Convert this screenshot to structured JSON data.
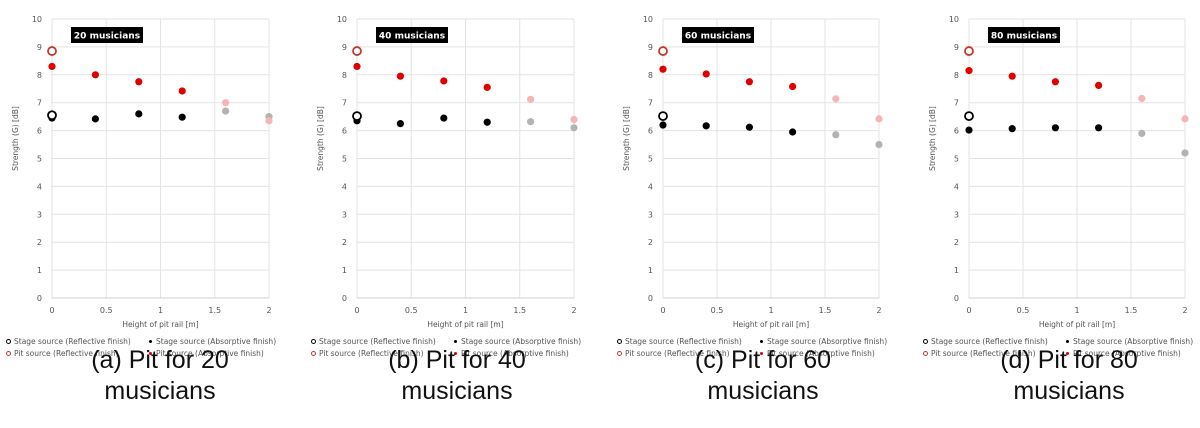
{
  "chart_data": [
    {
      "type": "scatter",
      "panel_id": "a",
      "title": "20 musicians",
      "caption": "(a) Pit for 20 musicians",
      "xlabel": "Height of pit rail [m]",
      "ylabel": "Strength (G) [dB]",
      "xlim": [
        0,
        2
      ],
      "ylim": [
        0,
        10
      ],
      "xticks": [
        "0",
        "0.5",
        "1",
        "1.5",
        "2"
      ],
      "yticks": [
        "0",
        "1",
        "2",
        "3",
        "4",
        "5",
        "6",
        "7",
        "8",
        "9",
        "10"
      ],
      "grid": true,
      "legend_position": "bottom",
      "series": [
        {
          "name": "Stage source (Reflective finish)",
          "marker": "open-circle",
          "color": "#000000",
          "x": [
            0
          ],
          "y": [
            6.55
          ]
        },
        {
          "name": "Stage source (Absorptive finish)",
          "marker": "filled-circle",
          "color": "#000000",
          "faded_color": "#b3b3b3",
          "x": [
            0,
            0.4,
            0.8,
            1.2,
            1.6,
            2
          ],
          "y": [
            6.45,
            6.42,
            6.6,
            6.48,
            6.7,
            6.5
          ],
          "faded_from_x": 1.6
        },
        {
          "name": "Pit source (Reflective finish)",
          "marker": "open-circle",
          "color": "#c0392b",
          "x": [
            0
          ],
          "y": [
            8.85
          ]
        },
        {
          "name": "Pit source (Absorptive finish)",
          "marker": "filled-circle",
          "color": "#e00000",
          "faded_color": "#f4b6b6",
          "x": [
            0,
            0.4,
            0.8,
            1.2,
            1.6,
            2
          ],
          "y": [
            8.3,
            8.0,
            7.75,
            7.42,
            7.0,
            6.35
          ],
          "faded_from_x": 1.6
        }
      ]
    },
    {
      "type": "scatter",
      "panel_id": "b",
      "title": "40 musicians",
      "caption": "(b) Pit for 40 musicians",
      "xlabel": "Height of pit rail [m]",
      "ylabel": "Strength (G) [dB]",
      "xlim": [
        0,
        2
      ],
      "ylim": [
        0,
        10
      ],
      "xticks": [
        "0",
        "0.5",
        "1",
        "1.5",
        "2"
      ],
      "yticks": [
        "0",
        "1",
        "2",
        "3",
        "4",
        "5",
        "6",
        "7",
        "8",
        "9",
        "10"
      ],
      "grid": true,
      "legend_position": "bottom",
      "series": [
        {
          "name": "Stage source (Reflective finish)",
          "marker": "open-circle",
          "color": "#000000",
          "x": [
            0
          ],
          "y": [
            6.52
          ]
        },
        {
          "name": "Stage source (Absorptive finish)",
          "marker": "filled-circle",
          "color": "#000000",
          "faded_color": "#b3b3b3",
          "x": [
            0,
            0.4,
            0.8,
            1.2,
            1.6,
            2
          ],
          "y": [
            6.35,
            6.25,
            6.45,
            6.3,
            6.32,
            6.1
          ],
          "faded_from_x": 1.6
        },
        {
          "name": "Pit source (Reflective finish)",
          "marker": "open-circle",
          "color": "#c0392b",
          "x": [
            0
          ],
          "y": [
            8.85
          ]
        },
        {
          "name": "Pit source (Absorptive finish)",
          "marker": "filled-circle",
          "color": "#e00000",
          "faded_color": "#f4b6b6",
          "x": [
            0,
            0.4,
            0.8,
            1.2,
            1.6,
            2
          ],
          "y": [
            8.3,
            7.95,
            7.78,
            7.55,
            7.12,
            6.4
          ],
          "faded_from_x": 1.6
        }
      ]
    },
    {
      "type": "scatter",
      "panel_id": "c",
      "title": "60 musicians",
      "caption": "(c) Pit for 60 musicians",
      "xlabel": "Height of pit rail [m]",
      "ylabel": "Strength (G) [dB]",
      "xlim": [
        0,
        2
      ],
      "ylim": [
        0,
        10
      ],
      "xticks": [
        "0",
        "0.5",
        "1",
        "1.5",
        "2"
      ],
      "yticks": [
        "0",
        "1",
        "2",
        "3",
        "4",
        "5",
        "6",
        "7",
        "8",
        "9",
        "10"
      ],
      "grid": true,
      "legend_position": "bottom",
      "series": [
        {
          "name": "Stage source (Reflective finish)",
          "marker": "open-circle",
          "color": "#000000",
          "x": [
            0
          ],
          "y": [
            6.52
          ]
        },
        {
          "name": "Stage source (Absorptive finish)",
          "marker": "filled-circle",
          "color": "#000000",
          "faded_color": "#b3b3b3",
          "x": [
            0,
            0.4,
            0.8,
            1.2,
            1.6,
            2
          ],
          "y": [
            6.2,
            6.17,
            6.12,
            5.95,
            5.85,
            5.5
          ],
          "faded_from_x": 1.6
        },
        {
          "name": "Pit source (Reflective finish)",
          "marker": "open-circle",
          "color": "#c0392b",
          "x": [
            0
          ],
          "y": [
            8.85
          ]
        },
        {
          "name": "Pit source (Absorptive finish)",
          "marker": "filled-circle",
          "color": "#e00000",
          "faded_color": "#f4b6b6",
          "x": [
            0,
            0.4,
            0.8,
            1.2,
            1.6,
            2
          ],
          "y": [
            8.2,
            8.03,
            7.75,
            7.58,
            7.14,
            6.42
          ],
          "faded_from_x": 1.6
        }
      ]
    },
    {
      "type": "scatter",
      "panel_id": "d",
      "title": "80 musicians",
      "caption": "(d) Pit for 80 musicians",
      "xlabel": "Height of pit rail [m]",
      "ylabel": "Strength (G) [dB]",
      "xlim": [
        0,
        2
      ],
      "ylim": [
        0,
        10
      ],
      "xticks": [
        "0",
        "0.5",
        "1",
        "1.5",
        "2"
      ],
      "yticks": [
        "0",
        "1",
        "2",
        "3",
        "4",
        "5",
        "6",
        "7",
        "8",
        "9",
        "10"
      ],
      "grid": true,
      "legend_position": "bottom",
      "series": [
        {
          "name": "Stage source (Reflective finish)",
          "marker": "open-circle",
          "color": "#000000",
          "x": [
            0
          ],
          "y": [
            6.52
          ]
        },
        {
          "name": "Stage source (Absorptive finish)",
          "marker": "filled-circle",
          "color": "#000000",
          "faded_color": "#b3b3b3",
          "x": [
            0,
            0.4,
            0.8,
            1.2,
            1.6,
            2
          ],
          "y": [
            6.02,
            6.07,
            6.1,
            6.1,
            5.9,
            5.2
          ],
          "faded_from_x": 1.6
        },
        {
          "name": "Pit source (Reflective finish)",
          "marker": "open-circle",
          "color": "#c0392b",
          "x": [
            0
          ],
          "y": [
            8.85
          ]
        },
        {
          "name": "Pit source (Absorptive finish)",
          "marker": "filled-circle",
          "color": "#e00000",
          "faded_color": "#f4b6b6",
          "x": [
            0,
            0.4,
            0.8,
            1.2,
            1.6,
            2
          ],
          "y": [
            8.15,
            7.95,
            7.75,
            7.62,
            7.15,
            6.42
          ],
          "faded_from_x": 1.6
        }
      ]
    }
  ],
  "captions": {
    "a": {
      "line1": "(a) Pit for 20",
      "line2": "musicians"
    },
    "b": {
      "line1": "(b) Pit for 40",
      "line2": "musicians"
    },
    "c": {
      "line1": "(c) Pit for 60",
      "line2": "musicians"
    },
    "d": {
      "line1": "(d) Pit for 80",
      "line2": "musicians"
    }
  }
}
